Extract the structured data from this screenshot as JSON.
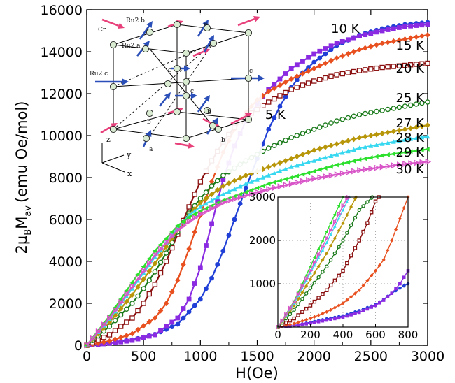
{
  "chart_data": {
    "type": "scatter",
    "xlabel": "H(Oe)",
    "ylabel": {
      "base": "2μ",
      "sub1": "B",
      "mid": "M",
      "sub2": "av",
      "units": "(emu Oe/mol)"
    },
    "xlim": [
      0,
      3000
    ],
    "ylim": [
      0,
      16000
    ],
    "x_ticks": [
      "0",
      "500",
      "1000",
      "1500",
      "2000",
      "2500",
      "3000"
    ],
    "y_ticks": [
      "0",
      "2000",
      "4000",
      "6000",
      "8000",
      "10000",
      "12000",
      "14000",
      "16000"
    ],
    "series": [
      {
        "name": "5 K",
        "color": "#1f3fd6",
        "marker": "circle-filled",
        "points": [
          [
            0,
            0
          ],
          [
            200,
            110
          ],
          [
            400,
            260
          ],
          [
            600,
            520
          ],
          [
            800,
            1000
          ],
          [
            1000,
            2200
          ],
          [
            1100,
            3200
          ],
          [
            1200,
            4500
          ],
          [
            1300,
            6000
          ],
          [
            1400,
            7500
          ],
          [
            1500,
            8900
          ],
          [
            1600,
            10300
          ],
          [
            1700,
            11400
          ],
          [
            1800,
            12300
          ],
          [
            1900,
            13000
          ],
          [
            2000,
            13500
          ],
          [
            2200,
            14300
          ],
          [
            2400,
            14800
          ],
          [
            2600,
            15100
          ],
          [
            2800,
            15300
          ],
          [
            3000,
            15400
          ]
        ]
      },
      {
        "name": "10 K",
        "color": "#8a2be2",
        "marker": "square-filled",
        "points": [
          [
            0,
            0
          ],
          [
            200,
            90
          ],
          [
            400,
            230
          ],
          [
            600,
            500
          ],
          [
            800,
            1300
          ],
          [
            900,
            2200
          ],
          [
            1000,
            3700
          ],
          [
            1100,
            5800
          ],
          [
            1200,
            7900
          ],
          [
            1300,
            9500
          ],
          [
            1400,
            10700
          ],
          [
            1500,
            11500
          ],
          [
            1600,
            12200
          ],
          [
            1800,
            13200
          ],
          [
            2000,
            13900
          ],
          [
            2200,
            14400
          ],
          [
            2400,
            14750
          ],
          [
            2600,
            15000
          ],
          [
            2800,
            15200
          ],
          [
            3000,
            15300
          ]
        ]
      },
      {
        "name": "15 K",
        "color": "#e8501f",
        "marker": "diamond-filled",
        "points": [
          [
            0,
            0
          ],
          [
            200,
            200
          ],
          [
            400,
            550
          ],
          [
            600,
            1300
          ],
          [
            700,
            2000
          ],
          [
            800,
            3100
          ],
          [
            900,
            4600
          ],
          [
            1000,
            6200
          ],
          [
            1100,
            7800
          ],
          [
            1200,
            9200
          ],
          [
            1300,
            10300
          ],
          [
            1400,
            11100
          ],
          [
            1500,
            11700
          ],
          [
            1600,
            12100
          ],
          [
            1800,
            12700
          ],
          [
            2000,
            13200
          ],
          [
            2200,
            13700
          ],
          [
            2400,
            14100
          ],
          [
            2600,
            14400
          ],
          [
            2800,
            14600
          ],
          [
            3000,
            14800
          ]
        ]
      },
      {
        "name": "20 K",
        "color": "#8b1010",
        "marker": "square-open",
        "points": [
          [
            0,
            0
          ],
          [
            200,
            500
          ],
          [
            400,
            1300
          ],
          [
            500,
            2000
          ],
          [
            600,
            2900
          ],
          [
            700,
            4000
          ],
          [
            800,
            5300
          ],
          [
            900,
            6600
          ],
          [
            1000,
            7800
          ],
          [
            1100,
            8800
          ],
          [
            1200,
            9700
          ],
          [
            1300,
            10400
          ],
          [
            1400,
            10900
          ],
          [
            1600,
            11600
          ],
          [
            1800,
            12200
          ],
          [
            2000,
            12600
          ],
          [
            2200,
            12900
          ],
          [
            2400,
            13100
          ],
          [
            2600,
            13250
          ],
          [
            2800,
            13350
          ],
          [
            3000,
            13450
          ]
        ]
      },
      {
        "name": "25 K",
        "color": "#1a7a1a",
        "marker": "circle-open",
        "points": [
          [
            0,
            0
          ],
          [
            200,
            900
          ],
          [
            400,
            2000
          ],
          [
            500,
            2700
          ],
          [
            600,
            3500
          ],
          [
            700,
            4400
          ],
          [
            800,
            5400
          ],
          [
            900,
            6300
          ],
          [
            1000,
            7000
          ],
          [
            1100,
            7600
          ],
          [
            1200,
            8100
          ],
          [
            1400,
            8800
          ],
          [
            1600,
            9400
          ],
          [
            1800,
            9900
          ],
          [
            2000,
            10300
          ],
          [
            2200,
            10700
          ],
          [
            2400,
            11000
          ],
          [
            2600,
            11200
          ],
          [
            2800,
            11400
          ],
          [
            3000,
            11600
          ]
        ]
      },
      {
        "name": "27 K",
        "color": "#b8960a",
        "marker": "diamond-filled",
        "points": [
          [
            0,
            0
          ],
          [
            200,
            1100
          ],
          [
            400,
            2400
          ],
          [
            600,
            3900
          ],
          [
            700,
            4700
          ],
          [
            800,
            5500
          ],
          [
            900,
            6200
          ],
          [
            1000,
            6800
          ],
          [
            1200,
            7600
          ],
          [
            1400,
            8100
          ],
          [
            1600,
            8500
          ],
          [
            1800,
            8900
          ],
          [
            2000,
            9300
          ],
          [
            2200,
            9600
          ],
          [
            2400,
            9900
          ],
          [
            2600,
            10100
          ],
          [
            2800,
            10300
          ],
          [
            3000,
            10500
          ]
        ]
      },
      {
        "name": "28 K",
        "color": "#38d8f0",
        "marker": "triangle-up",
        "points": [
          [
            0,
            0
          ],
          [
            200,
            1250
          ],
          [
            400,
            2700
          ],
          [
            600,
            4200
          ],
          [
            700,
            4900
          ],
          [
            800,
            5600
          ],
          [
            900,
            6200
          ],
          [
            1000,
            6600
          ],
          [
            1200,
            7200
          ],
          [
            1400,
            7700
          ],
          [
            1600,
            8100
          ],
          [
            1800,
            8500
          ],
          [
            2000,
            8800
          ],
          [
            2200,
            9100
          ],
          [
            2400,
            9400
          ],
          [
            2600,
            9600
          ],
          [
            2800,
            9800
          ],
          [
            3000,
            9950
          ]
        ]
      },
      {
        "name": "29 K",
        "color": "#2ee02e",
        "marker": "triangle-left",
        "points": [
          [
            0,
            0
          ],
          [
            200,
            1400
          ],
          [
            400,
            3000
          ],
          [
            600,
            4500
          ],
          [
            700,
            5100
          ],
          [
            800,
            5700
          ],
          [
            900,
            6100
          ],
          [
            1000,
            6400
          ],
          [
            1200,
            6900
          ],
          [
            1400,
            7300
          ],
          [
            1600,
            7700
          ],
          [
            1800,
            8000
          ],
          [
            2000,
            8300
          ],
          [
            2200,
            8600
          ],
          [
            2400,
            8850
          ],
          [
            2600,
            9050
          ],
          [
            2800,
            9200
          ],
          [
            3000,
            9350
          ]
        ]
      },
      {
        "name": "30 K",
        "color": "#d855c8",
        "marker": "triangle-right",
        "points": [
          [
            0,
            0
          ],
          [
            200,
            1300
          ],
          [
            400,
            2800
          ],
          [
            600,
            4300
          ],
          [
            700,
            4900
          ],
          [
            800,
            5500
          ],
          [
            900,
            5900
          ],
          [
            1000,
            6250
          ],
          [
            1200,
            6800
          ],
          [
            1400,
            7150
          ],
          [
            1600,
            7450
          ],
          [
            1800,
            7700
          ],
          [
            2000,
            7950
          ],
          [
            2200,
            8150
          ],
          [
            2400,
            8350
          ],
          [
            2600,
            8500
          ],
          [
            2800,
            8650
          ],
          [
            3000,
            8750
          ]
        ]
      }
    ],
    "labels": [
      {
        "text": "5 K",
        "series": "5 K",
        "at": [
          1570,
          10800
        ]
      },
      {
        "text": "10 K",
        "series": "10 K",
        "at": [
          2150,
          14900
        ]
      },
      {
        "text": "15 K",
        "series": "15 K",
        "at": [
          2720,
          14100
        ]
      },
      {
        "text": "20 K",
        "series": "20 K",
        "at": [
          2720,
          13000
        ]
      },
      {
        "text": "25 K",
        "series": "25 K",
        "at": [
          2720,
          11600
        ]
      },
      {
        "text": "27 K",
        "series": "27 K",
        "at": [
          2720,
          10400
        ]
      },
      {
        "text": "28 K",
        "series": "28 K",
        "at": [
          2720,
          9700
        ]
      },
      {
        "text": "29 K",
        "series": "29 K",
        "at": [
          2720,
          9000
        ]
      },
      {
        "text": "30 K",
        "series": "30 K",
        "at": [
          2720,
          8200
        ]
      }
    ],
    "inset": {
      "xlim": [
        0,
        800
      ],
      "ylim": [
        0,
        3000
      ],
      "x_ticks": [
        "0",
        "200",
        "400",
        "600",
        "800"
      ],
      "y_ticks": [
        "1000",
        "2000",
        "3000"
      ],
      "series": [
        {
          "name": "5 K",
          "color": "#1f3fd6",
          "marker": "circle-filled",
          "points": [
            [
              0,
              0
            ],
            [
              100,
              35
            ],
            [
              200,
              110
            ],
            [
              300,
              190
            ],
            [
              400,
              260
            ],
            [
              500,
              380
            ],
            [
              600,
              520
            ],
            [
              650,
              640
            ],
            [
              700,
              780
            ],
            [
              750,
              900
            ],
            [
              800,
              1000
            ]
          ]
        },
        {
          "name": "10 K",
          "color": "#8a2be2",
          "marker": "square-filled",
          "points": [
            [
              0,
              0
            ],
            [
              100,
              30
            ],
            [
              200,
              90
            ],
            [
              300,
              160
            ],
            [
              400,
              230
            ],
            [
              500,
              340
            ],
            [
              600,
              500
            ],
            [
              650,
              620
            ],
            [
              700,
              780
            ],
            [
              750,
              1000
            ],
            [
              800,
              1300
            ]
          ]
        },
        {
          "name": "15 K",
          "color": "#e8501f",
          "marker": "diamond-filled",
          "points": [
            [
              0,
              0
            ],
            [
              100,
              80
            ],
            [
              200,
              200
            ],
            [
              300,
              350
            ],
            [
              400,
              550
            ],
            [
              500,
              850
            ],
            [
              600,
              1300
            ],
            [
              650,
              1550
            ],
            [
              700,
              2000
            ],
            [
              750,
              2500
            ],
            [
              800,
              3000
            ]
          ]
        },
        {
          "name": "20 K",
          "color": "#8b1010",
          "marker": "square-open",
          "points": [
            [
              0,
              0
            ],
            [
              100,
              200
            ],
            [
              200,
              500
            ],
            [
              300,
              850
            ],
            [
              400,
              1300
            ],
            [
              500,
              2000
            ],
            [
              550,
              2400
            ],
            [
              600,
              2900
            ],
            [
              620,
              3000
            ]
          ]
        },
        {
          "name": "25 K",
          "color": "#1a7a1a",
          "marker": "circle-open",
          "points": [
            [
              0,
              0
            ],
            [
              100,
              400
            ],
            [
              200,
              900
            ],
            [
              300,
              1400
            ],
            [
              400,
              2000
            ],
            [
              500,
              2700
            ],
            [
              580,
              3000
            ]
          ]
        },
        {
          "name": "27 K",
          "color": "#b8960a",
          "marker": "diamond-filled",
          "points": [
            [
              0,
              0
            ],
            [
              100,
              500
            ],
            [
              200,
              1100
            ],
            [
              300,
              1700
            ],
            [
              400,
              2400
            ],
            [
              480,
              3000
            ]
          ]
        },
        {
          "name": "28 K",
          "color": "#38d8f0",
          "marker": "triangle-up",
          "points": [
            [
              0,
              0
            ],
            [
              100,
              550
            ],
            [
              200,
              1250
            ],
            [
              300,
              1950
            ],
            [
              400,
              2700
            ],
            [
              440,
              3000
            ]
          ]
        },
        {
          "name": "29 K",
          "color": "#2ee02e",
          "marker": "triangle-left",
          "points": [
            [
              0,
              0
            ],
            [
              100,
              600
            ],
            [
              200,
              1400
            ],
            [
              300,
              2200
            ],
            [
              400,
              3000
            ]
          ]
        },
        {
          "name": "30 K",
          "color": "#d855c8",
          "marker": "triangle-right",
          "points": [
            [
              0,
              0
            ],
            [
              100,
              580
            ],
            [
              200,
              1300
            ],
            [
              300,
              2050
            ],
            [
              400,
              2800
            ],
            [
              430,
              3000
            ]
          ]
        }
      ]
    },
    "crystal_structure": {
      "atom_labels": [
        "Cr",
        "Ru2 b",
        "Ru2 a",
        "Ru2 c",
        "a",
        "b",
        "c"
      ],
      "axis_labels": [
        "z",
        "y",
        "x"
      ]
    }
  }
}
